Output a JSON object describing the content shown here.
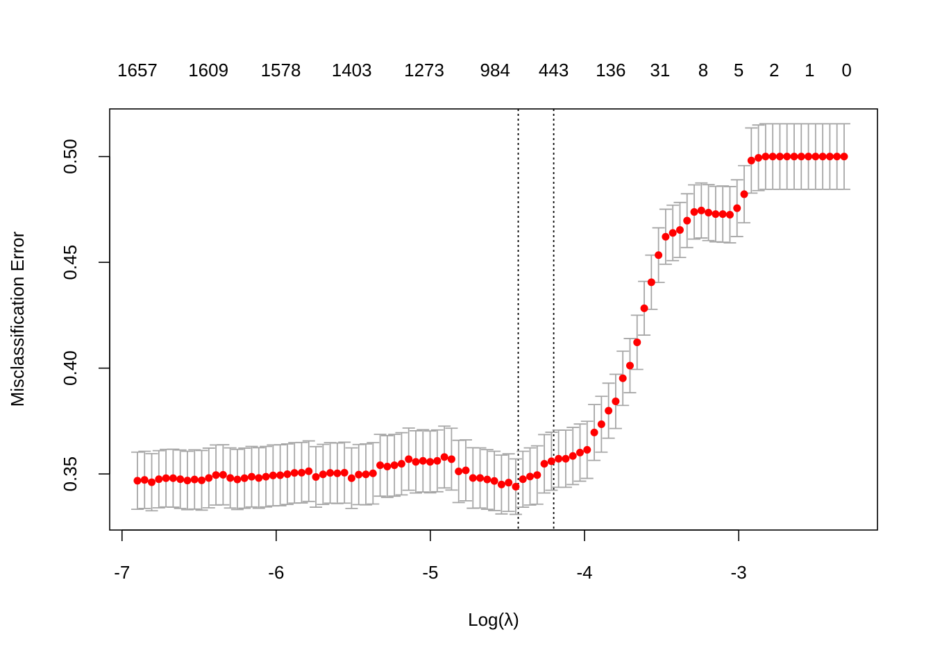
{
  "chart_data": {
    "type": "scatter",
    "title": "",
    "xlabel": "Log(λ)",
    "ylabel": "Misclassification Error",
    "xlim": [
      -7.08,
      -2.1
    ],
    "ylim": [
      0.3235,
      0.5225
    ],
    "x_ticks": [
      -7,
      -6,
      -5,
      -4,
      -3
    ],
    "x_tick_labels": [
      "-7",
      "-6",
      "-5",
      "-4",
      "-3"
    ],
    "y_ticks": [
      0.35,
      0.4,
      0.45,
      0.5
    ],
    "y_tick_labels": [
      "0.35",
      "0.40",
      "0.45",
      "0.50"
    ],
    "top_axis": {
      "x": [
        -6.9,
        -6.44,
        -5.97,
        -5.51,
        -5.04,
        -4.58,
        -4.2,
        -3.83,
        -3.51,
        -3.23,
        -3.0,
        -2.77,
        -2.54,
        -2.3
      ],
      "labels": [
        "1657",
        "1609",
        "1578",
        "1403",
        "1273",
        "984",
        "443",
        "136",
        "31",
        "8",
        "5",
        "2",
        "1",
        "0"
      ]
    },
    "vlines": [
      -4.43,
      -4.2
    ],
    "point_color": "#ff0000",
    "errorbar_color": "#a6a6a6",
    "grid": false,
    "series": [
      {
        "x_start": -6.9,
        "x_step": 0.0463,
        "y": [
          0.3468,
          0.3472,
          0.3461,
          0.3475,
          0.348,
          0.348,
          0.3475,
          0.3469,
          0.3474,
          0.347,
          0.3481,
          0.3495,
          0.3496,
          0.3481,
          0.3474,
          0.348,
          0.3487,
          0.3481,
          0.3487,
          0.3493,
          0.3494,
          0.3499,
          0.3505,
          0.3506,
          0.3513,
          0.3486,
          0.3498,
          0.3505,
          0.3503,
          0.3506,
          0.348,
          0.3497,
          0.3498,
          0.3503,
          0.3541,
          0.3535,
          0.3541,
          0.3548,
          0.357,
          0.3557,
          0.3562,
          0.3557,
          0.3562,
          0.358,
          0.357,
          0.3512,
          0.3517,
          0.3481,
          0.3481,
          0.3474,
          0.3467,
          0.345,
          0.3459,
          0.344,
          0.3475,
          0.3488,
          0.3495,
          0.3548,
          0.356,
          0.3572,
          0.3572,
          0.3585,
          0.3601,
          0.3614,
          0.3696,
          0.3735,
          0.3799,
          0.3843,
          0.3952,
          0.4012,
          0.4122,
          0.4283,
          0.4406,
          0.4534,
          0.4621,
          0.4639,
          0.4653,
          0.4697,
          0.4738,
          0.4745,
          0.4735,
          0.4728,
          0.4728,
          0.4725,
          0.4756,
          0.4822,
          0.4981,
          0.4994,
          0.5,
          0.5,
          0.5,
          0.5,
          0.5,
          0.5,
          0.5,
          0.5,
          0.5,
          0.5,
          0.5,
          0.5
        ],
        "se": [
          0.0135,
          0.0135,
          0.0135,
          0.0135,
          0.0136,
          0.0137,
          0.0138,
          0.0138,
          0.014,
          0.0141,
          0.0141,
          0.0142,
          0.0142,
          0.0142,
          0.0142,
          0.0142,
          0.0143,
          0.0143,
          0.0143,
          0.0144,
          0.0144,
          0.0143,
          0.0143,
          0.0143,
          0.0143,
          0.0143,
          0.0142,
          0.0143,
          0.0143,
          0.0144,
          0.0143,
          0.0142,
          0.0144,
          0.0145,
          0.0146,
          0.0146,
          0.0146,
          0.0147,
          0.0147,
          0.0147,
          0.0147,
          0.0146,
          0.0146,
          0.0146,
          0.0146,
          0.0147,
          0.0144,
          0.0143,
          0.0142,
          0.0141,
          0.014,
          0.0139,
          0.0136,
          0.0131,
          0.0132,
          0.0135,
          0.0138,
          0.0138,
          0.0137,
          0.0135,
          0.0135,
          0.0135,
          0.0135,
          0.0135,
          0.0132,
          0.0132,
          0.013,
          0.0128,
          0.0128,
          0.0128,
          0.0128,
          0.0127,
          0.0128,
          0.0129,
          0.013,
          0.0131,
          0.013,
          0.0127,
          0.0128,
          0.013,
          0.0132,
          0.0131,
          0.0133,
          0.0133,
          0.0134,
          0.0135,
          0.0154,
          0.0155,
          0.0155,
          0.0155,
          0.0155,
          0.0155,
          0.0155,
          0.0155,
          0.0155,
          0.0155,
          0.0155,
          0.0155,
          0.0155,
          0.0155
        ]
      }
    ]
  }
}
